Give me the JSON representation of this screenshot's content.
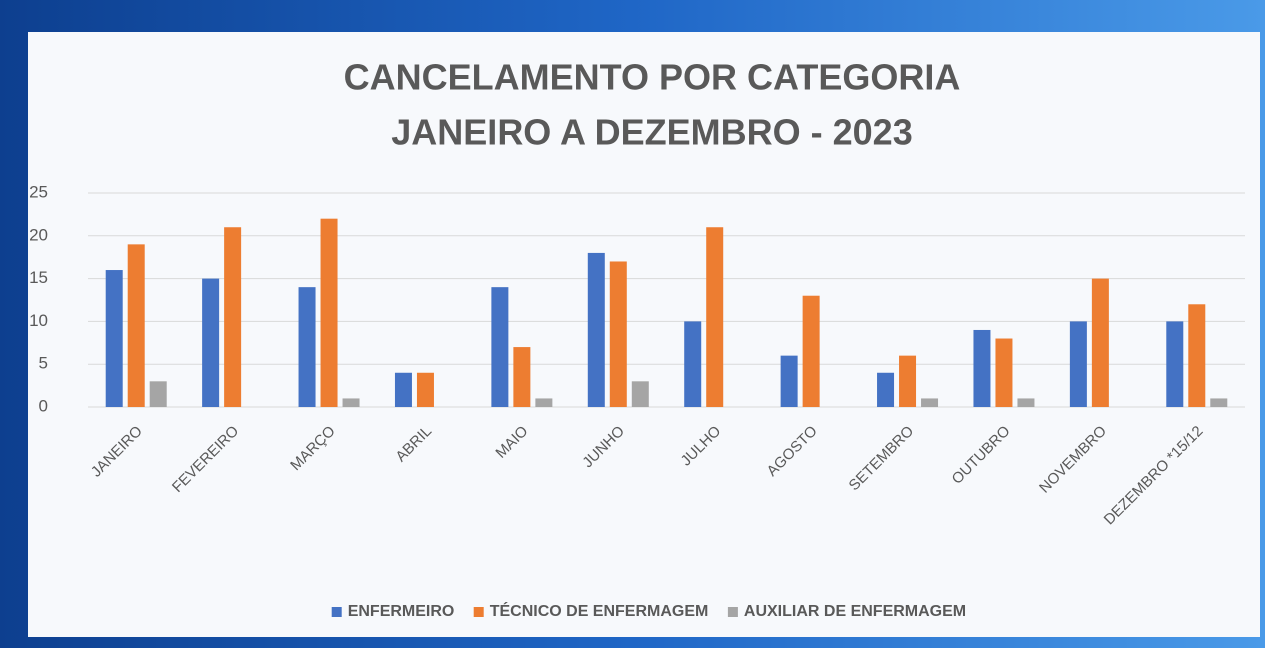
{
  "chart_data": {
    "type": "bar",
    "title": "CANCELAMENTO POR CATEGORIA",
    "subtitle": "JANEIRO A DEZEMBRO - 2023",
    "categories": [
      "JANEIRO",
      "FEVEREIRO",
      "MARÇO",
      "ABRIL",
      "MAIO",
      "JUNHO",
      "JULHO",
      "AGOSTO",
      "SETEMBRO",
      "OUTUBRO",
      "NOVEMBRO",
      "DEZEMBRO *15/12"
    ],
    "series": [
      {
        "name": "ENFERMEIRO",
        "color": "#4472c4",
        "values": [
          16,
          15,
          14,
          4,
          14,
          18,
          10,
          6,
          4,
          9,
          10,
          10
        ]
      },
      {
        "name": "TÉCNICO DE ENFERMAGEM",
        "color": "#ed7d31",
        "values": [
          19,
          21,
          22,
          4,
          7,
          17,
          21,
          13,
          6,
          8,
          15,
          12
        ]
      },
      {
        "name": "AUXILIAR DE ENFERMAGEM",
        "color": "#a5a5a5",
        "values": [
          3,
          0,
          1,
          0,
          1,
          3,
          0,
          0,
          1,
          1,
          0,
          1
        ]
      }
    ],
    "ylim": [
      0,
      25
    ],
    "yticks": [
      0,
      5,
      10,
      15,
      20,
      25
    ],
    "grid": true,
    "legend": "bottom"
  }
}
